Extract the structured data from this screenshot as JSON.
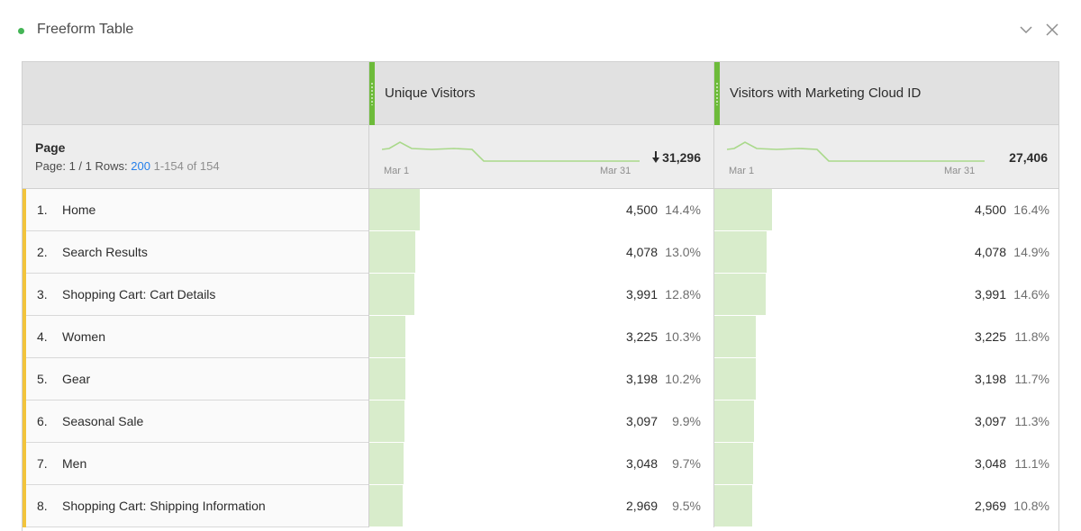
{
  "panel": {
    "title": "Freeform Table",
    "status_color": "#44b556",
    "collapse_icon": "chevron-down-icon",
    "close_icon": "close-icon"
  },
  "table": {
    "dimension": {
      "title": "Page",
      "page_label": "Page: 1 / 1",
      "rows_label": "Rows:",
      "rows_value": "200",
      "range": "1-154 of 154"
    },
    "columns": [
      {
        "label": "Unique Visitors",
        "total": "31,296",
        "total_icon": "down-arrow-icon",
        "spark_start": "Mar 1",
        "spark_end": "Mar 31",
        "accent": "#6dbb3a"
      },
      {
        "label": "Visitors with Marketing Cloud ID",
        "total": "27,406",
        "spark_start": "Mar 1",
        "spark_end": "Mar 31",
        "accent": "#6dbb3a"
      }
    ],
    "rows": [
      {
        "num": "1.",
        "label": "Home",
        "v1": "4,500",
        "p1": "14.4%",
        "v2": "4,500",
        "p2": "16.4%",
        "f1": 0.144,
        "f2": 0.164
      },
      {
        "num": "2.",
        "label": "Search Results",
        "v1": "4,078",
        "p1": "13.0%",
        "v2": "4,078",
        "p2": "14.9%",
        "f1": 0.13,
        "f2": 0.149
      },
      {
        "num": "3.",
        "label": "Shopping Cart: Cart Details",
        "v1": "3,991",
        "p1": "12.8%",
        "v2": "3,991",
        "p2": "14.6%",
        "f1": 0.128,
        "f2": 0.146
      },
      {
        "num": "4.",
        "label": "Women",
        "v1": "3,225",
        "p1": "10.3%",
        "v2": "3,225",
        "p2": "11.8%",
        "f1": 0.103,
        "f2": 0.118
      },
      {
        "num": "5.",
        "label": "Gear",
        "v1": "3,198",
        "p1": "10.2%",
        "v2": "3,198",
        "p2": "11.7%",
        "f1": 0.102,
        "f2": 0.117
      },
      {
        "num": "6.",
        "label": "Seasonal Sale",
        "v1": "3,097",
        "p1": "9.9%",
        "v2": "3,097",
        "p2": "11.3%",
        "f1": 0.099,
        "f2": 0.113
      },
      {
        "num": "7.",
        "label": "Men",
        "v1": "3,048",
        "p1": "9.7%",
        "v2": "3,048",
        "p2": "11.1%",
        "f1": 0.097,
        "f2": 0.111
      },
      {
        "num": "8.",
        "label": "Shopping Cart: Shipping Information",
        "v1": "2,969",
        "p1": "9.5%",
        "v2": "2,969",
        "p2": "10.8%",
        "f1": 0.095,
        "f2": 0.108
      }
    ],
    "row_accent": "#f2c43c",
    "bar_color": "#d8eccb",
    "spark_color": "#a9d98a"
  }
}
